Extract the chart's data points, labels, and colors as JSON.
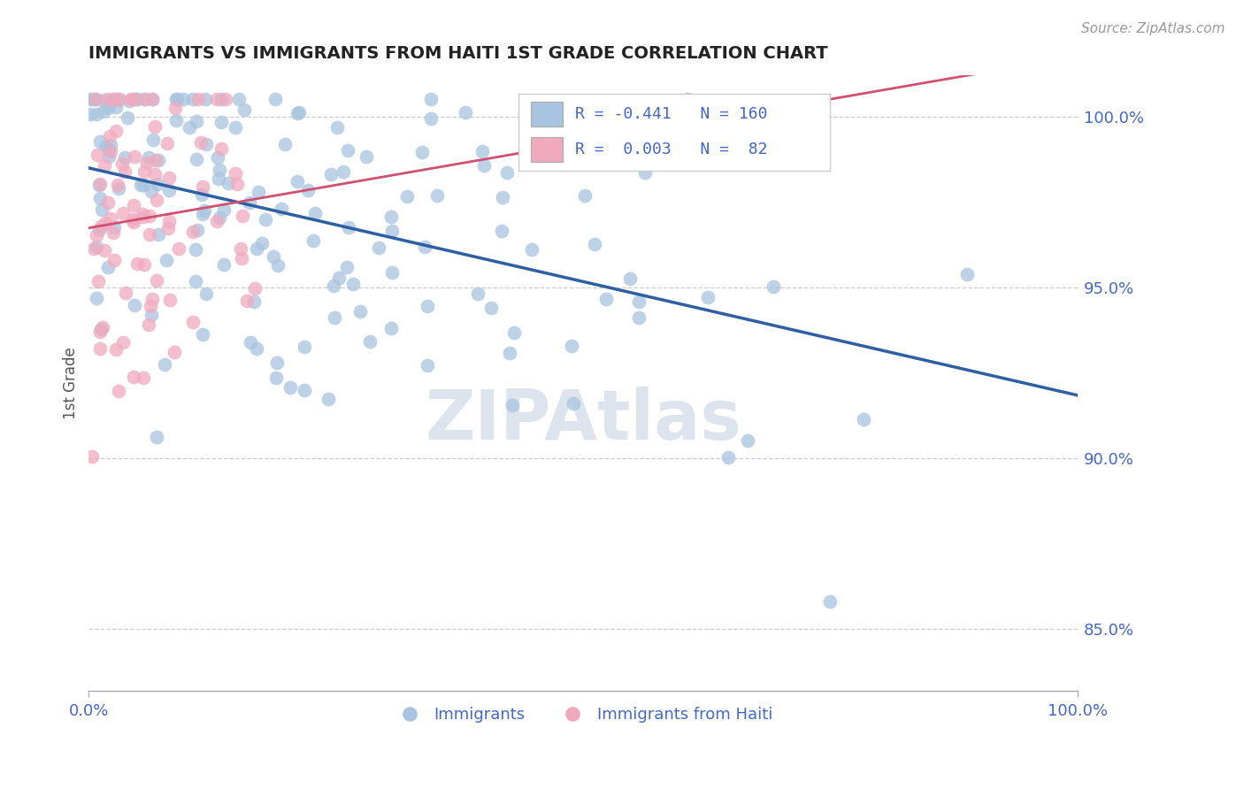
{
  "title": "IMMIGRANTS VS IMMIGRANTS FROM HAITI 1ST GRADE CORRELATION CHART",
  "source_text": "Source: ZipAtlas.com",
  "ylabel": "1st Grade",
  "blue_color": "#A8C4E0",
  "pink_color": "#F0AABE",
  "blue_line_color": "#2E5FA3",
  "pink_line_color": "#D05070",
  "bg_color": "#ffffff",
  "grid_color": "#cccccc",
  "title_color": "#222222",
  "axis_color": "#4466cc",
  "watermark": "ZIPAtlas",
  "watermark_color": "#dde4ee",
  "N_blue": 160,
  "N_pink": 82,
  "R_blue": -0.441,
  "R_pink": 0.003,
  "yticks": [
    0.85,
    0.9,
    0.95,
    1.0
  ],
  "ytick_labels": [
    "85.0%",
    "90.0%",
    "95.0%",
    "100.0%"
  ],
  "xtick_labels": [
    "0.0%",
    "100.0%"
  ],
  "bottom_labels": [
    "Immigrants",
    "Immigrants from Haiti"
  ],
  "seed": 7
}
